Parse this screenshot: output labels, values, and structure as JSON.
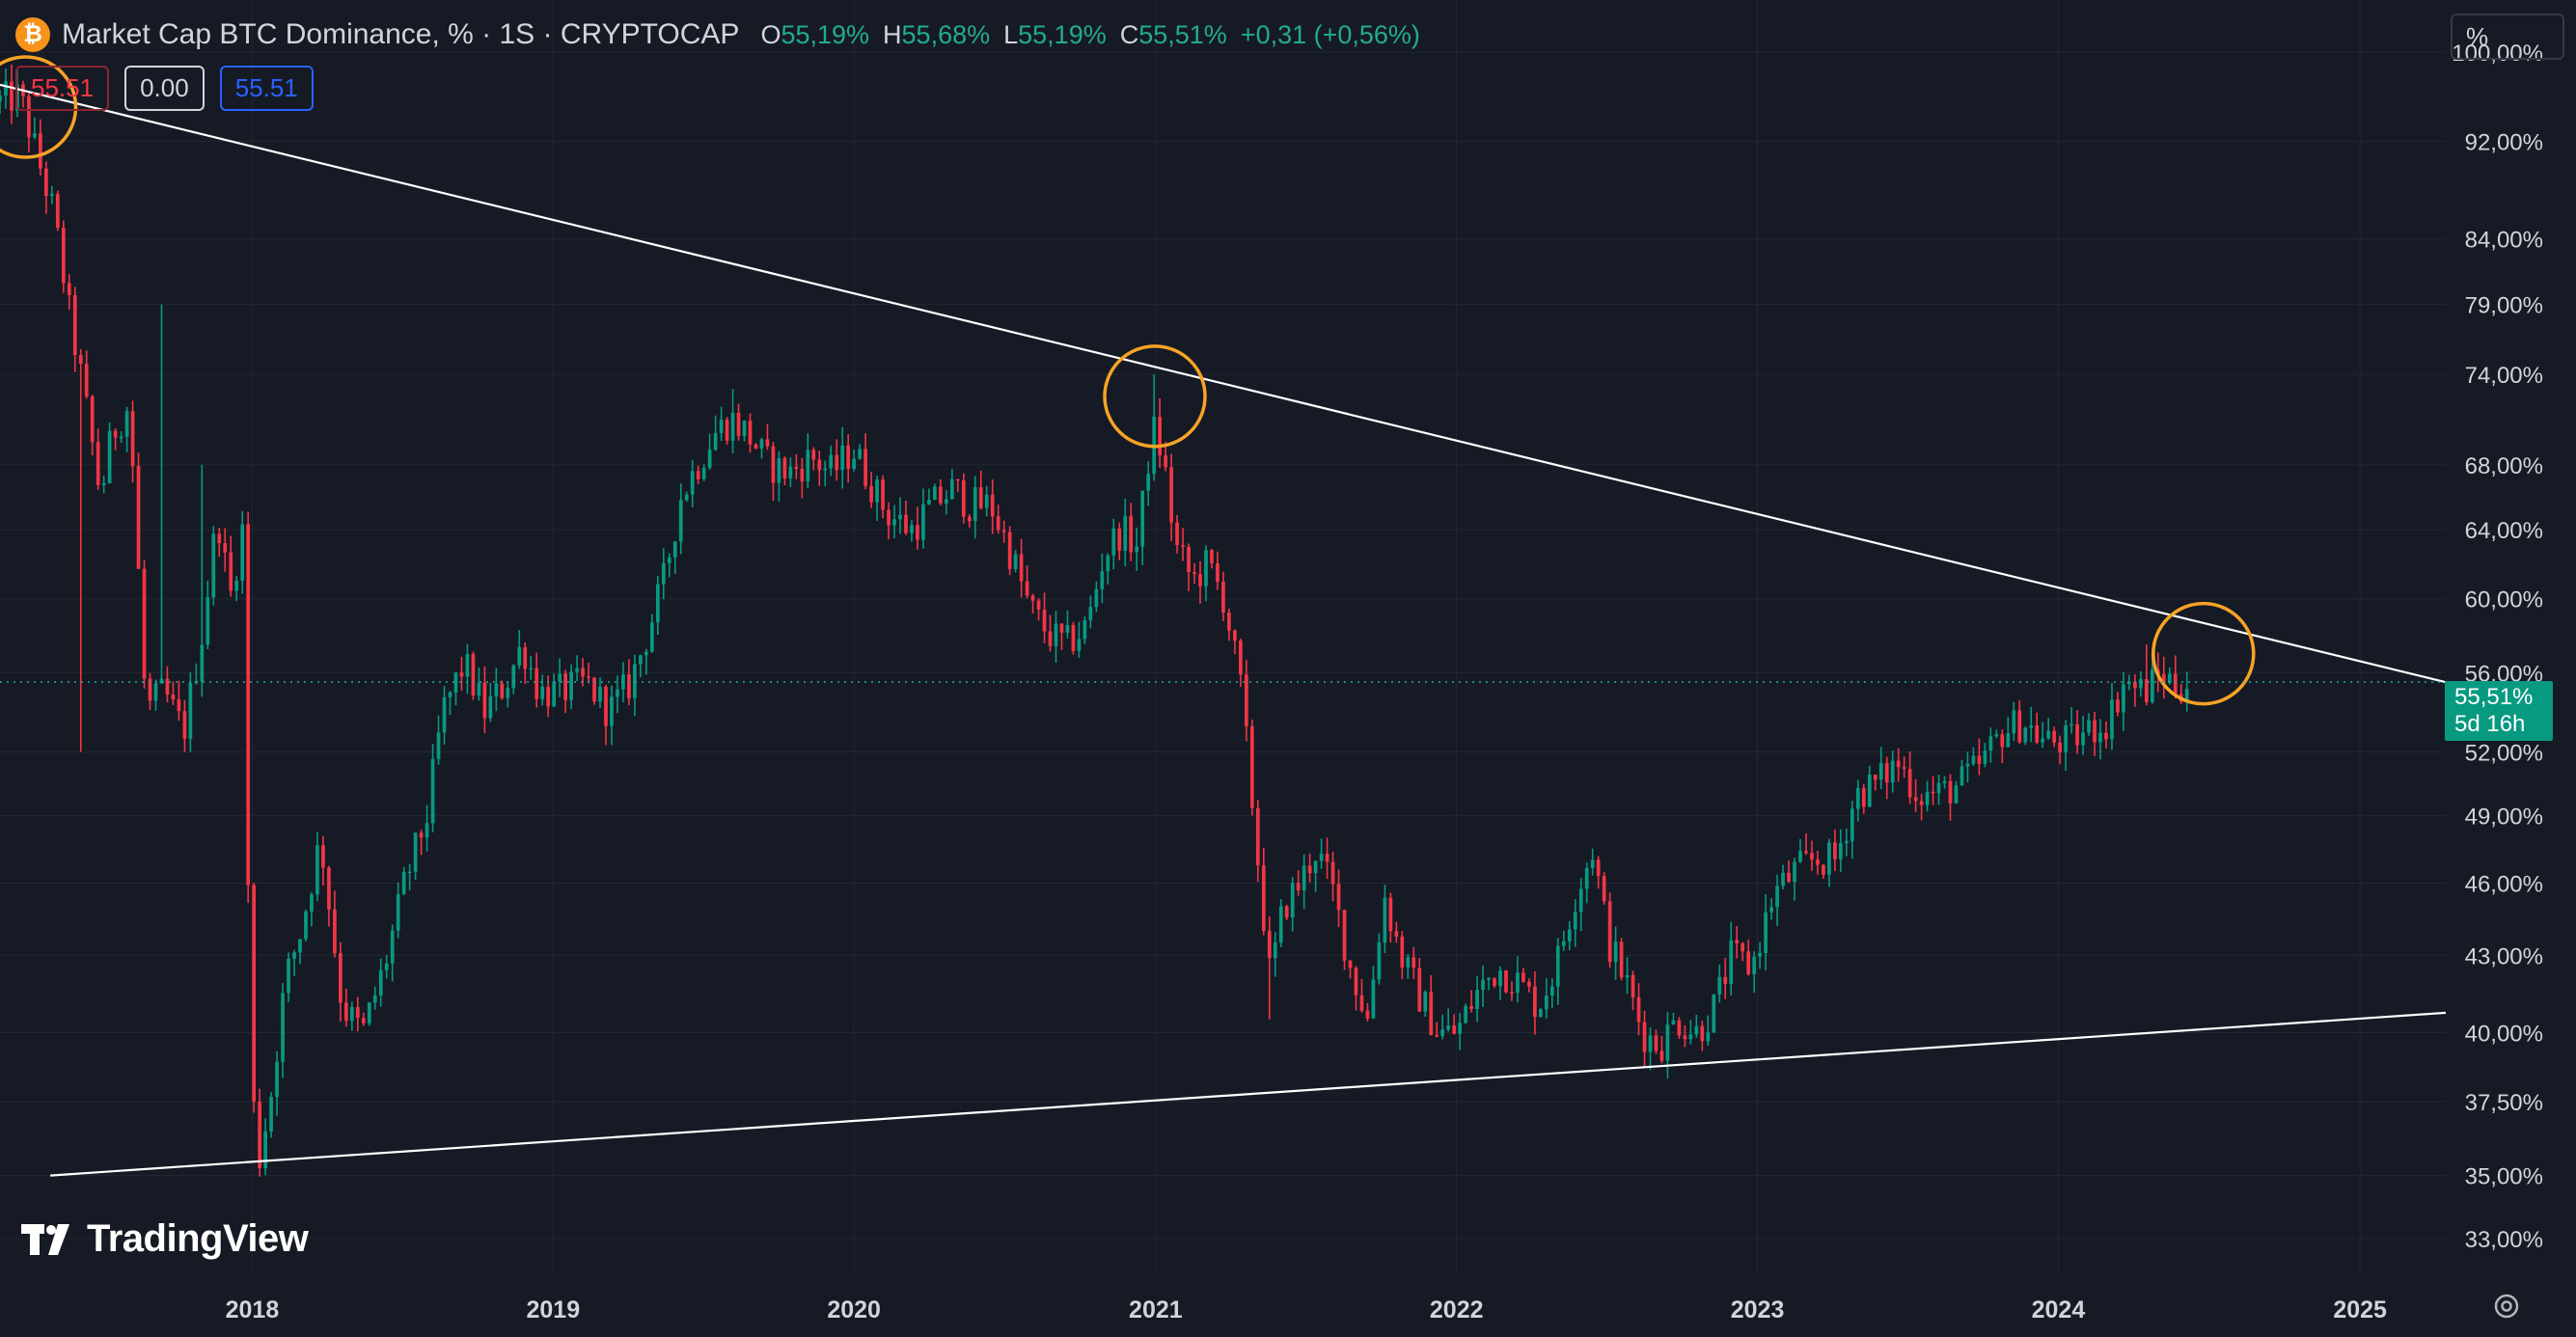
{
  "header": {
    "title": "Market Cap BTC Dominance, % · 1S · CRYPTOCAP",
    "ohlc": {
      "o_label": "O",
      "o_value": "55,19%",
      "h_label": "H",
      "h_value": "55,68%",
      "l_label": "L",
      "l_value": "55,19%",
      "c_label": "C",
      "c_value": "55,51%",
      "change": "+0,31 (+0,56%)"
    }
  },
  "pills": {
    "sell": "55.51",
    "spread": "0.00",
    "buy": "55.51"
  },
  "scale_mode": "%",
  "price_tag": {
    "value": "55,51%",
    "countdown": "5d 16h"
  },
  "logo": {
    "text": "TradingView"
  },
  "colors": {
    "background": "#161a25",
    "up": "#089981",
    "down": "#f23645",
    "trendline": "#ffffff",
    "highlight_circle": "#f7a325",
    "current_price": "#22ab94"
  },
  "chart_data": {
    "type": "candlestick",
    "title": "Market Cap BTC Dominance, % · 1S · CRYPTOCAP",
    "y_scale": "log",
    "ylim": [
      32.0,
      105.0
    ],
    "xlim": [
      "2017-03-01",
      "2025-04-15"
    ],
    "grid": true,
    "y_ticks": [
      33,
      35,
      37.5,
      40,
      43,
      46,
      49,
      52,
      56,
      60,
      64,
      68,
      74,
      79,
      84,
      92,
      100
    ],
    "y_tick_labels": [
      "33,00%",
      "35,00%",
      "37,50%",
      "40,00%",
      "43,00%",
      "46,00%",
      "49,00%",
      "52,00%",
      "56,00%",
      "60,00%",
      "64,00%",
      "68,00%",
      "74,00%",
      "79,00%",
      "84,00%",
      "92,00%",
      "100,00%"
    ],
    "x_ticks": [
      "2018-01-01",
      "2019-01-01",
      "2020-01-01",
      "2021-01-01",
      "2022-01-01",
      "2023-01-01",
      "2024-01-01",
      "2025-01-01"
    ],
    "x_tick_labels": [
      "2018",
      "2019",
      "2020",
      "2021",
      "2022",
      "2023",
      "2024",
      "2025"
    ],
    "current_price": 55.51,
    "path": [
      [
        "2017-03-01",
        95.5
      ],
      [
        "2017-03-25",
        96.0
      ],
      [
        "2017-04-10",
        92.0
      ],
      [
        "2017-05-05",
        86.0
      ],
      [
        "2017-05-25",
        78.0
      ],
      [
        "2017-06-10",
        73.0
      ],
      [
        "2017-07-01",
        66.0
      ],
      [
        "2017-07-15",
        70.0
      ],
      [
        "2017-08-05",
        72.0
      ],
      [
        "2017-08-25",
        54.0
      ],
      [
        "2017-09-15",
        55.0
      ],
      [
        "2017-10-10",
        53.0
      ],
      [
        "2017-11-01",
        58.0
      ],
      [
        "2017-11-20",
        65.0
      ],
      [
        "2017-12-05",
        60.0
      ],
      [
        "2017-12-20",
        64.0
      ],
      [
        "2017-12-31",
        38.0
      ],
      [
        "2018-01-10",
        35.6
      ],
      [
        "2018-01-25",
        38.0
      ],
      [
        "2018-02-10",
        42.0
      ],
      [
        "2018-03-01",
        44.0
      ],
      [
        "2018-03-25",
        48.0
      ],
      [
        "2018-04-20",
        41.0
      ],
      [
        "2018-05-15",
        40.0
      ],
      [
        "2018-06-10",
        42.5
      ],
      [
        "2018-07-05",
        46.0
      ],
      [
        "2018-08-01",
        49.0
      ],
      [
        "2018-08-20",
        54.0
      ],
      [
        "2018-09-15",
        56.5
      ],
      [
        "2018-10-10",
        54.0
      ],
      [
        "2018-11-05",
        55.5
      ],
      [
        "2018-11-25",
        57.5
      ],
      [
        "2018-12-15",
        55.0
      ],
      [
        "2019-01-10",
        55.0
      ],
      [
        "2019-02-10",
        55.5
      ],
      [
        "2019-03-10",
        54.0
      ],
      [
        "2019-04-05",
        55.5
      ],
      [
        "2019-04-25",
        58.0
      ],
      [
        "2019-05-15",
        61.0
      ],
      [
        "2019-06-05",
        66.0
      ],
      [
        "2019-06-25",
        68.0
      ],
      [
        "2019-07-15",
        70.0
      ],
      [
        "2019-08-05",
        71.0
      ],
      [
        "2019-08-25",
        70.0
      ],
      [
        "2019-09-20",
        68.0
      ],
      [
        "2019-10-15",
        67.5
      ],
      [
        "2019-11-10",
        68.5
      ],
      [
        "2019-12-05",
        67.5
      ],
      [
        "2019-12-31",
        69.0
      ],
      [
        "2020-02-10",
        65.0
      ],
      [
        "2020-03-10",
        64.0
      ],
      [
        "2020-04-05",
        65.5
      ],
      [
        "2020-05-01",
        66.5
      ],
      [
        "2020-05-20",
        65.5
      ],
      [
        "2020-06-15",
        65.5
      ],
      [
        "2020-07-10",
        62.5
      ],
      [
        "2020-08-01",
        59.5
      ],
      [
        "2020-08-25",
        58.0
      ],
      [
        "2020-09-15",
        57.5
      ],
      [
        "2020-10-10",
        58.5
      ],
      [
        "2020-10-30",
        62.5
      ],
      [
        "2020-11-20",
        64.0
      ],
      [
        "2020-12-10",
        63.0
      ],
      [
        "2020-12-28",
        70.5
      ],
      [
        "2021-01-10",
        68.5
      ],
      [
        "2021-01-25",
        63.0
      ],
      [
        "2021-02-15",
        61.0
      ],
      [
        "2021-03-05",
        62.0
      ],
      [
        "2021-03-25",
        60.0
      ],
      [
        "2021-04-15",
        55.0
      ],
      [
        "2021-05-05",
        47.0
      ],
      [
        "2021-05-20",
        42.0
      ],
      [
        "2021-06-05",
        45.0
      ],
      [
        "2021-06-25",
        46.0
      ],
      [
        "2021-07-15",
        47.5
      ],
      [
        "2021-08-05",
        45.5
      ],
      [
        "2021-08-25",
        42.5
      ],
      [
        "2021-09-15",
        40.5
      ],
      [
        "2021-10-05",
        45.5
      ],
      [
        "2021-10-25",
        43.0
      ],
      [
        "2021-11-15",
        41.5
      ],
      [
        "2021-12-10",
        40.0
      ],
      [
        "2022-01-01",
        40.0
      ],
      [
        "2022-01-25",
        41.5
      ],
      [
        "2022-02-20",
        42.5
      ],
      [
        "2022-03-15",
        42.0
      ],
      [
        "2022-04-10",
        41.0
      ],
      [
        "2022-05-01",
        42.5
      ],
      [
        "2022-05-25",
        45.5
      ],
      [
        "2022-06-15",
        47.5
      ],
      [
        "2022-07-05",
        43.5
      ],
      [
        "2022-07-25",
        42.0
      ],
      [
        "2022-08-15",
        40.0
      ],
      [
        "2022-09-05",
        39.5
      ],
      [
        "2022-09-25",
        40.5
      ],
      [
        "2022-10-20",
        40.0
      ],
      [
        "2022-11-10",
        41.0
      ],
      [
        "2022-12-01",
        43.0
      ],
      [
        "2022-12-25",
        42.5
      ],
      [
        "2023-01-20",
        45.5
      ],
      [
        "2023-02-15",
        46.5
      ],
      [
        "2023-03-10",
        47.0
      ],
      [
        "2023-04-05",
        47.0
      ],
      [
        "2023-05-01",
        50.0
      ],
      [
        "2023-05-25",
        50.5
      ],
      [
        "2023-06-20",
        51.5
      ],
      [
        "2023-07-15",
        50.0
      ],
      [
        "2023-08-10",
        50.0
      ],
      [
        "2023-09-05",
        50.5
      ],
      [
        "2023-10-01",
        51.5
      ],
      [
        "2023-10-25",
        53.0
      ],
      [
        "2023-11-20",
        53.5
      ],
      [
        "2023-12-15",
        52.5
      ],
      [
        "2024-01-15",
        52.5
      ],
      [
        "2024-02-05",
        53.0
      ],
      [
        "2024-03-01",
        53.5
      ],
      [
        "2024-03-20",
        55.5
      ],
      [
        "2024-04-15",
        55.0
      ],
      [
        "2024-05-05",
        56.0
      ],
      [
        "2024-05-25",
        55.2
      ],
      [
        "2024-06-05",
        55.51
      ]
    ],
    "spikes": [
      [
        "2017-09-15",
        79.0
      ],
      [
        "2017-11-01",
        68.0
      ],
      [
        "2017-06-10",
        52.0
      ],
      [
        "2018-01-10",
        35.0
      ],
      [
        "2020-12-28",
        74.0
      ],
      [
        "2019-08-05",
        73.0
      ],
      [
        "2021-05-20",
        40.5
      ],
      [
        "2024-04-15",
        57.5
      ]
    ],
    "trendlines": [
      {
        "from": [
          "2017-03-01",
          97.0
        ],
        "to": [
          "2025-04-15",
          55.5
        ]
      },
      {
        "from": [
          "2017-05-01",
          35.0
        ],
        "to": [
          "2025-04-15",
          40.75
        ]
      }
    ],
    "highlights": [
      {
        "date": "2017-04-01",
        "value": 95.0
      },
      {
        "date": "2020-12-31",
        "value": 72.5
      },
      {
        "date": "2024-06-25",
        "value": 57.0
      }
    ]
  }
}
